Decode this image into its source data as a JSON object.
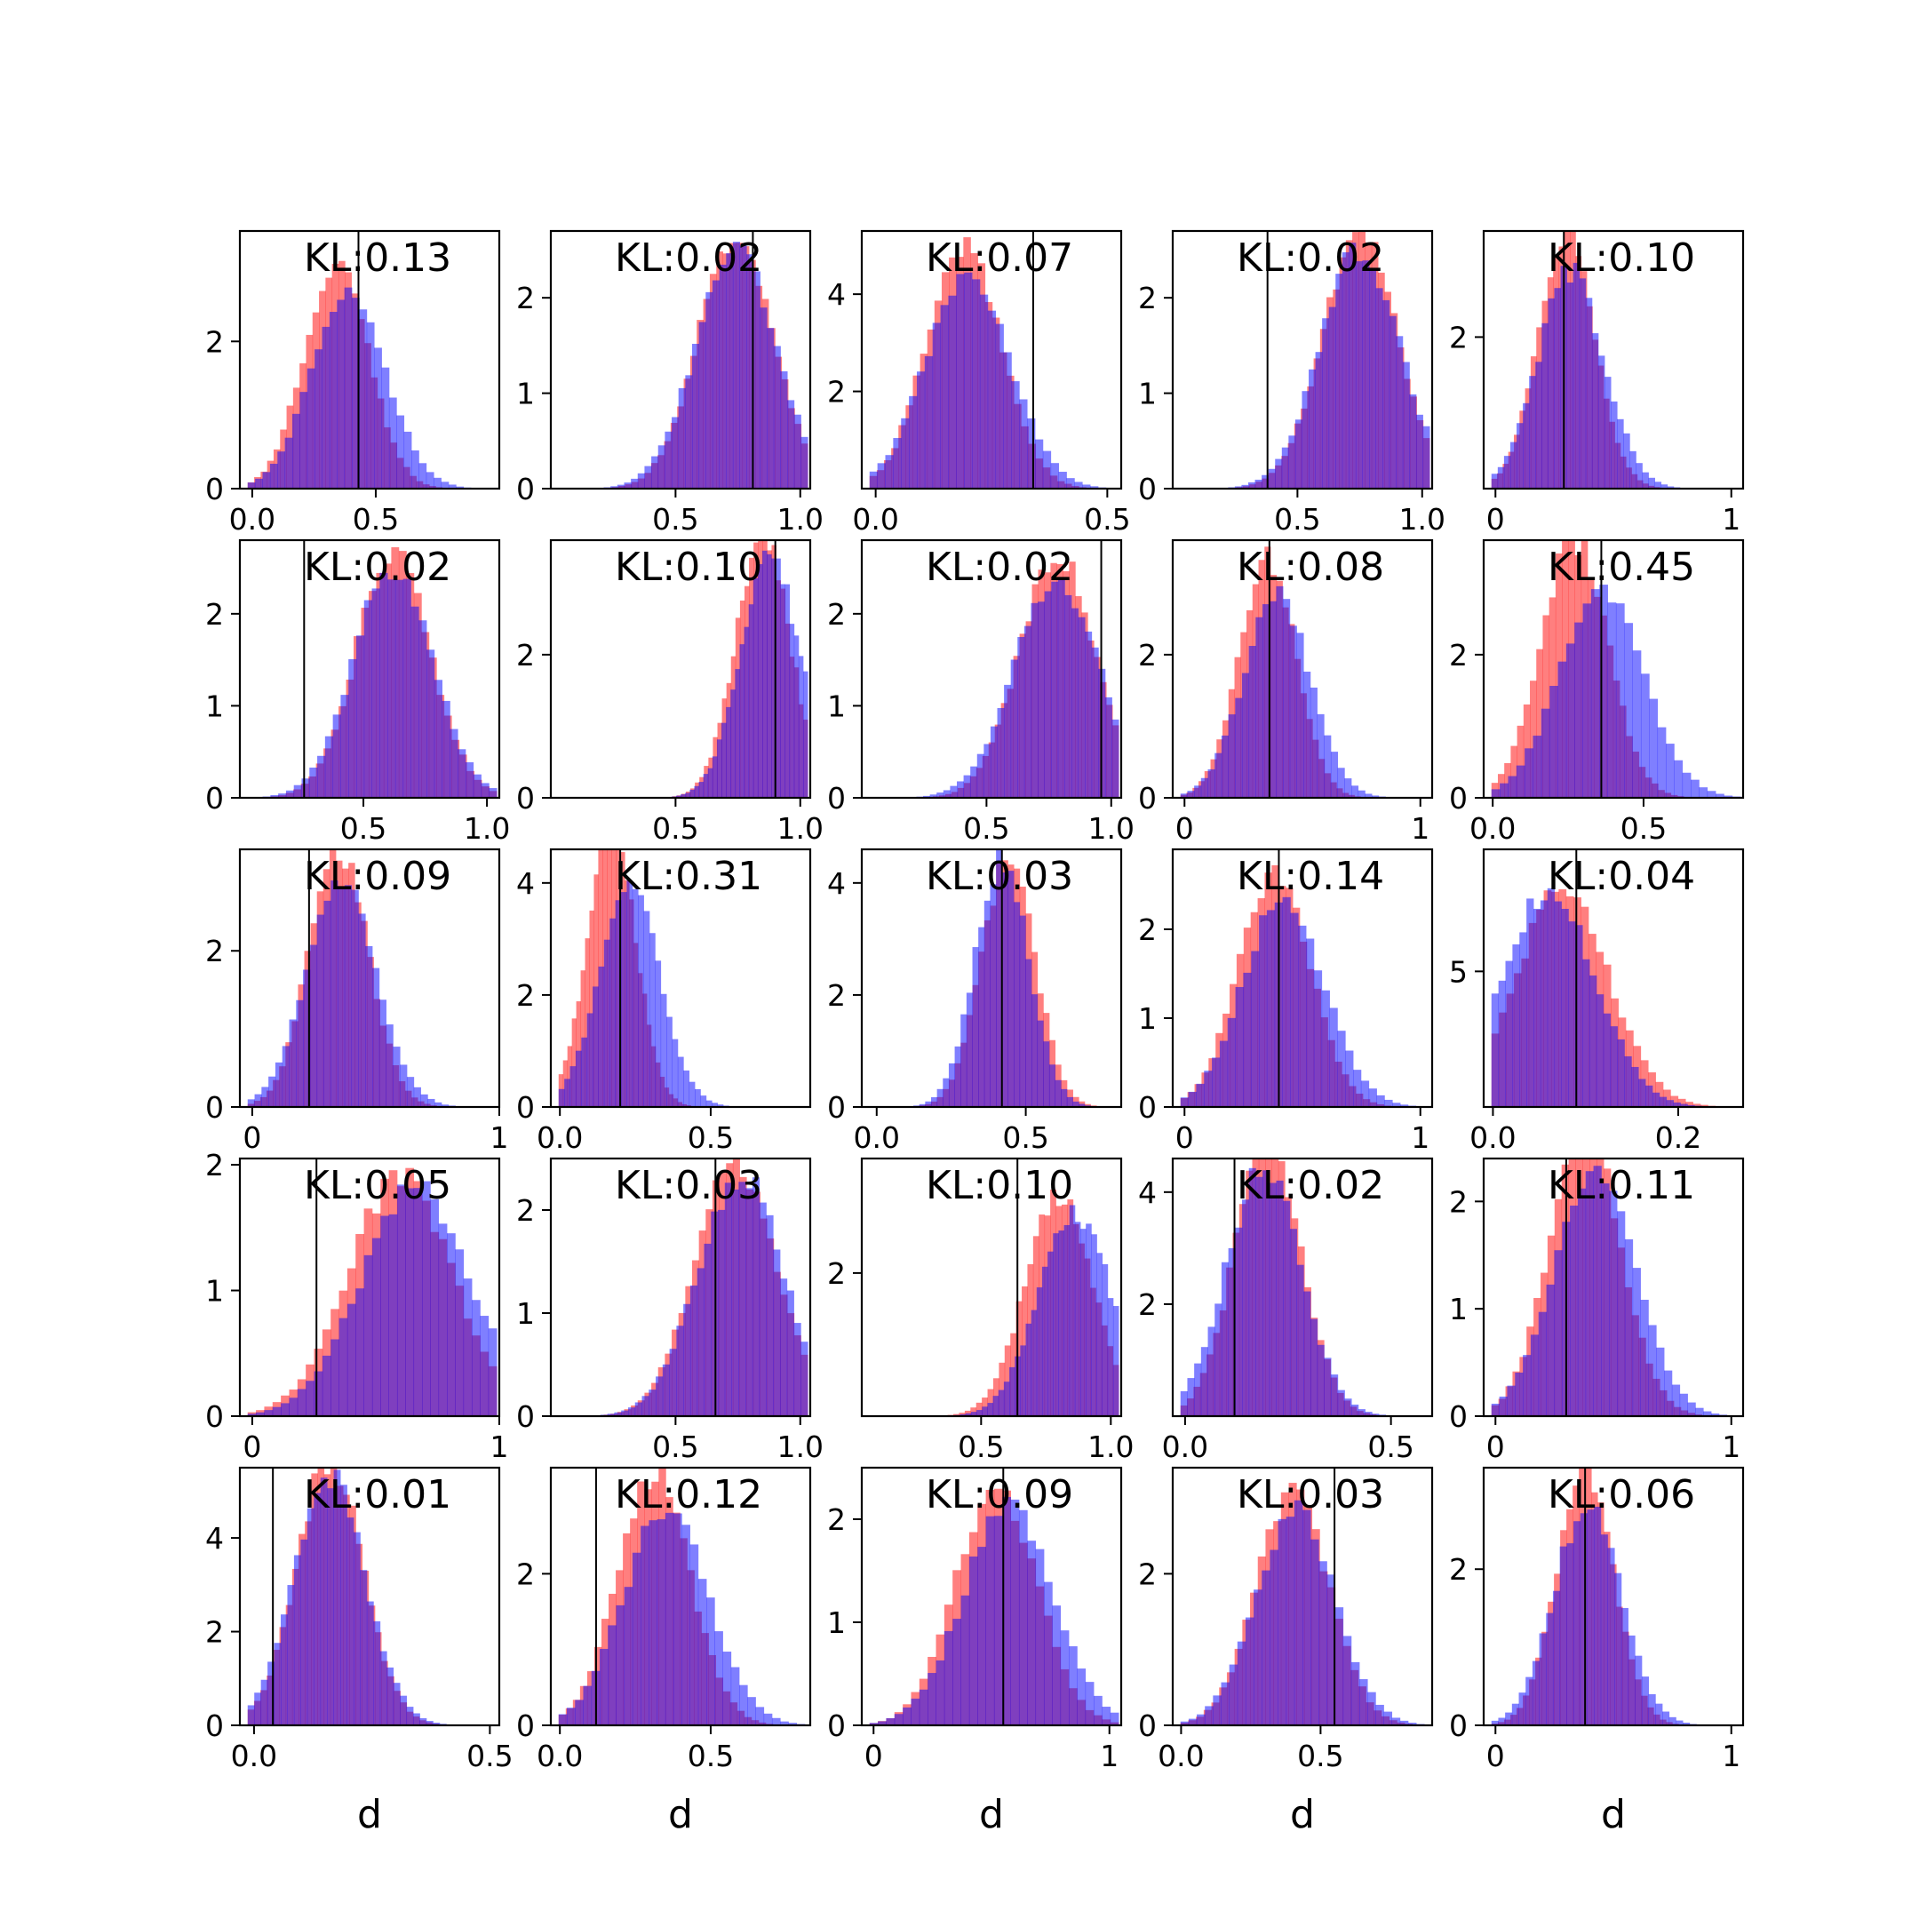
{
  "colors": {
    "red_series": "#ff0000",
    "blue_series": "#0000ff",
    "overlap": "#7f3fbf",
    "marker_line": "#000000",
    "axes": "#000000",
    "background": "#ffffff"
  },
  "chart_data": [
    {
      "type": "histogram",
      "annotation": "KL:0.13",
      "xlabel": "",
      "xlim": [
        -0.05,
        1.0
      ],
      "ylim": [
        0,
        3.5
      ],
      "xticks": [
        "0.0",
        "0.5"
      ],
      "yticks": [
        "0",
        "2"
      ],
      "marker_x": 0.43,
      "red": {
        "mean": 0.34,
        "sd": 0.13
      },
      "blue": {
        "mean": 0.39,
        "sd": 0.15
      }
    },
    {
      "type": "histogram",
      "annotation": "KL:0.02",
      "xlabel": "",
      "xlim": [
        0.0,
        1.04
      ],
      "ylim": [
        0,
        2.7
      ],
      "xticks": [
        "0.5",
        "1.0"
      ],
      "yticks": [
        "0",
        "1",
        "2"
      ],
      "marker_x": 0.81,
      "red": {
        "mean": 0.74,
        "sd": 0.15
      },
      "blue": {
        "mean": 0.74,
        "sd": 0.16
      }
    },
    {
      "type": "histogram",
      "annotation": "KL:0.07",
      "xlabel": "",
      "xlim": [
        -0.03,
        0.53
      ],
      "ylim": [
        0,
        5.3
      ],
      "xticks": [
        "0.0",
        "0.5"
      ],
      "yticks": [
        "2",
        "4"
      ],
      "marker_x": 0.34,
      "red": {
        "mean": 0.19,
        "sd": 0.08
      },
      "blue": {
        "mean": 0.2,
        "sd": 0.09
      }
    },
    {
      "type": "histogram",
      "annotation": "KL:0.02",
      "xlabel": "",
      "xlim": [
        0.0,
        1.04
      ],
      "ylim": [
        0,
        2.7
      ],
      "xticks": [
        "0.5",
        "1.0"
      ],
      "yticks": [
        "0",
        "1",
        "2"
      ],
      "marker_x": 0.38,
      "red": {
        "mean": 0.75,
        "sd": 0.15
      },
      "blue": {
        "mean": 0.75,
        "sd": 0.16
      }
    },
    {
      "type": "histogram",
      "annotation": "KL:0.10",
      "xlabel": "",
      "xlim": [
        -0.05,
        1.05
      ],
      "ylim": [
        0,
        3.4
      ],
      "xticks": [
        "0",
        "1"
      ],
      "yticks": [
        "2"
      ],
      "marker_x": 0.29,
      "red": {
        "mean": 0.3,
        "sd": 0.12
      },
      "blue": {
        "mean": 0.32,
        "sd": 0.14
      }
    },
    {
      "type": "histogram",
      "annotation": "KL:0.02",
      "xlabel": "",
      "xlim": [
        0.0,
        1.05
      ],
      "ylim": [
        0,
        2.8
      ],
      "xticks": [
        "0.5",
        "1.0"
      ],
      "yticks": [
        "0",
        "1",
        "2"
      ],
      "marker_x": 0.26,
      "red": {
        "mean": 0.62,
        "sd": 0.15
      },
      "blue": {
        "mean": 0.62,
        "sd": 0.16
      }
    },
    {
      "type": "histogram",
      "annotation": "KL:0.10",
      "xlabel": "",
      "xlim": [
        0.0,
        1.04
      ],
      "ylim": [
        0,
        3.6
      ],
      "xticks": [
        "0.5",
        "1.0"
      ],
      "yticks": [
        "0",
        "2"
      ],
      "marker_x": 0.9,
      "red": {
        "mean": 0.85,
        "sd": 0.11
      },
      "blue": {
        "mean": 0.88,
        "sd": 0.12
      }
    },
    {
      "type": "histogram",
      "annotation": "KL:0.02",
      "xlabel": "",
      "xlim": [
        0.0,
        1.04
      ],
      "ylim": [
        0,
        2.8
      ],
      "xticks": [
        "0.5",
        "1.0"
      ],
      "yticks": [
        "0",
        "1",
        "2"
      ],
      "marker_x": 0.96,
      "red": {
        "mean": 0.78,
        "sd": 0.15
      },
      "blue": {
        "mean": 0.78,
        "sd": 0.17
      }
    },
    {
      "type": "histogram",
      "annotation": "KL:0.08",
      "xlabel": "",
      "xlim": [
        -0.05,
        1.05
      ],
      "ylim": [
        0,
        3.6
      ],
      "xticks": [
        "0",
        "1"
      ],
      "yticks": [
        "0",
        "2"
      ],
      "marker_x": 0.36,
      "red": {
        "mean": 0.35,
        "sd": 0.12
      },
      "blue": {
        "mean": 0.39,
        "sd": 0.14
      }
    },
    {
      "type": "histogram",
      "annotation": "KL:0.45",
      "xlabel": "",
      "xlim": [
        -0.03,
        0.83
      ],
      "ylim": [
        0,
        3.6
      ],
      "xticks": [
        "0.0",
        "0.5"
      ],
      "yticks": [
        "0",
        "2"
      ],
      "marker_x": 0.36,
      "red": {
        "mean": 0.27,
        "sd": 0.11
      },
      "blue": {
        "mean": 0.36,
        "sd": 0.14
      }
    },
    {
      "type": "histogram",
      "annotation": "KL:0.09",
      "xlabel": "",
      "xlim": [
        -0.05,
        1.0
      ],
      "ylim": [
        0,
        3.3
      ],
      "xticks": [
        "0",
        "1"
      ],
      "yticks": [
        "0",
        "2"
      ],
      "marker_x": 0.23,
      "red": {
        "mean": 0.35,
        "sd": 0.12
      },
      "blue": {
        "mean": 0.36,
        "sd": 0.14
      }
    },
    {
      "type": "histogram",
      "annotation": "KL:0.31",
      "xlabel": "",
      "xlim": [
        -0.03,
        0.83
      ],
      "ylim": [
        0,
        4.6
      ],
      "xticks": [
        "0.0",
        "0.5"
      ],
      "yticks": [
        "0",
        "2",
        "4"
      ],
      "marker_x": 0.2,
      "red": {
        "mean": 0.17,
        "sd": 0.08
      },
      "blue": {
        "mean": 0.23,
        "sd": 0.1
      }
    },
    {
      "type": "histogram",
      "annotation": "KL:0.03",
      "xlabel": "",
      "xlim": [
        -0.05,
        0.82
      ],
      "ylim": [
        0,
        4.6
      ],
      "xticks": [
        "0.0",
        "0.5"
      ],
      "yticks": [
        "0",
        "2",
        "4"
      ],
      "marker_x": 0.42,
      "red": {
        "mean": 0.44,
        "sd": 0.09
      },
      "blue": {
        "mean": 0.42,
        "sd": 0.09
      }
    },
    {
      "type": "histogram",
      "annotation": "KL:0.14",
      "xlabel": "",
      "xlim": [
        -0.05,
        1.05
      ],
      "ylim": [
        0,
        2.9
      ],
      "xticks": [
        "0",
        "1"
      ],
      "yticks": [
        "0",
        "1",
        "2"
      ],
      "marker_x": 0.4,
      "red": {
        "mean": 0.38,
        "sd": 0.15
      },
      "blue": {
        "mean": 0.42,
        "sd": 0.17
      }
    },
    {
      "type": "histogram",
      "annotation": "KL:0.04",
      "xlabel": "",
      "xlim": [
        -0.01,
        0.27
      ],
      "ylim": [
        0,
        9.5
      ],
      "xticks": [
        "0.0",
        "0.2"
      ],
      "yticks": [
        "5"
      ],
      "marker_x": 0.09,
      "red": {
        "mean": 0.075,
        "sd": 0.05
      },
      "blue": {
        "mean": 0.06,
        "sd": 0.05
      }
    },
    {
      "type": "histogram",
      "annotation": "KL:0.05",
      "xlabel": "",
      "xlim": [
        -0.05,
        1.0
      ],
      "ylim": [
        0,
        2.05
      ],
      "xticks": [
        "0",
        "1"
      ],
      "yticks": [
        "0",
        "1",
        "2"
      ],
      "marker_x": 0.26,
      "red": {
        "mean": 0.6,
        "sd": 0.21
      },
      "blue": {
        "mean": 0.66,
        "sd": 0.22
      }
    },
    {
      "type": "histogram",
      "annotation": "KL:0.03",
      "xlabel": "",
      "xlim": [
        0.0,
        1.04
      ],
      "ylim": [
        0,
        2.5
      ],
      "xticks": [
        "0.5",
        "1.0"
      ],
      "yticks": [
        "0",
        "1",
        "2"
      ],
      "marker_x": 0.66,
      "red": {
        "mean": 0.74,
        "sd": 0.16
      },
      "blue": {
        "mean": 0.76,
        "sd": 0.17
      }
    },
    {
      "type": "histogram",
      "annotation": "KL:0.10",
      "xlabel": "",
      "xlim": [
        0.04,
        1.04
      ],
      "ylim": [
        0,
        3.6
      ],
      "xticks": [
        "0.5",
        "1.0"
      ],
      "yticks": [
        "2"
      ],
      "marker_x": 0.64,
      "red": {
        "mean": 0.8,
        "sd": 0.13
      },
      "blue": {
        "mean": 0.86,
        "sd": 0.14
      }
    },
    {
      "type": "histogram",
      "annotation": "KL:0.02",
      "xlabel": "",
      "xlim": [
        -0.03,
        0.6
      ],
      "ylim": [
        0,
        4.6
      ],
      "xticks": [
        "0.0",
        "0.5"
      ],
      "yticks": [
        "2",
        "4"
      ],
      "marker_x": 0.12,
      "red": {
        "mean": 0.2,
        "sd": 0.08
      },
      "blue": {
        "mean": 0.19,
        "sd": 0.09
      }
    },
    {
      "type": "histogram",
      "annotation": "KL:0.11",
      "xlabel": "",
      "xlim": [
        -0.05,
        1.05
      ],
      "ylim": [
        0,
        2.4
      ],
      "xticks": [
        "0",
        "1"
      ],
      "yticks": [
        "0",
        "1",
        "2"
      ],
      "marker_x": 0.3,
      "red": {
        "mean": 0.38,
        "sd": 0.15
      },
      "blue": {
        "mean": 0.42,
        "sd": 0.17
      }
    },
    {
      "type": "histogram",
      "annotation": "KL:0.01",
      "xlabel": "d",
      "xlim": [
        -0.03,
        0.52
      ],
      "ylim": [
        0,
        5.5
      ],
      "xticks": [
        "0.0",
        "0.5"
      ],
      "yticks": [
        "0",
        "2",
        "4"
      ],
      "marker_x": 0.04,
      "red": {
        "mean": 0.16,
        "sd": 0.07
      },
      "blue": {
        "mean": 0.16,
        "sd": 0.075
      }
    },
    {
      "type": "histogram",
      "annotation": "KL:0.12",
      "xlabel": "d",
      "xlim": [
        -0.03,
        0.83
      ],
      "ylim": [
        0,
        3.4
      ],
      "xticks": [
        "0.0",
        "0.5"
      ],
      "yticks": [
        "0",
        "2"
      ],
      "marker_x": 0.12,
      "red": {
        "mean": 0.31,
        "sd": 0.12
      },
      "blue": {
        "mean": 0.35,
        "sd": 0.14
      }
    },
    {
      "type": "histogram",
      "annotation": "KL:0.09",
      "xlabel": "d",
      "xlim": [
        -0.05,
        1.05
      ],
      "ylim": [
        0,
        2.5
      ],
      "xticks": [
        "0",
        "1"
      ],
      "yticks": [
        "0",
        "1",
        "2"
      ],
      "marker_x": 0.55,
      "red": {
        "mean": 0.52,
        "sd": 0.17
      },
      "blue": {
        "mean": 0.57,
        "sd": 0.19
      }
    },
    {
      "type": "histogram",
      "annotation": "KL:0.03",
      "xlabel": "d",
      "xlim": [
        -0.03,
        0.9
      ],
      "ylim": [
        0,
        3.4
      ],
      "xticks": [
        "0.0",
        "0.5"
      ],
      "yticks": [
        "0",
        "2"
      ],
      "marker_x": 0.55,
      "red": {
        "mean": 0.4,
        "sd": 0.13
      },
      "blue": {
        "mean": 0.41,
        "sd": 0.14
      }
    },
    {
      "type": "histogram",
      "annotation": "KL:0.06",
      "xlabel": "d",
      "xlim": [
        -0.05,
        1.05
      ],
      "ylim": [
        0,
        3.3
      ],
      "xticks": [
        "0",
        "1"
      ],
      "yticks": [
        "0",
        "2"
      ],
      "marker_x": 0.38,
      "red": {
        "mean": 0.38,
        "sd": 0.12
      },
      "blue": {
        "mean": 0.39,
        "sd": 0.14
      }
    }
  ]
}
